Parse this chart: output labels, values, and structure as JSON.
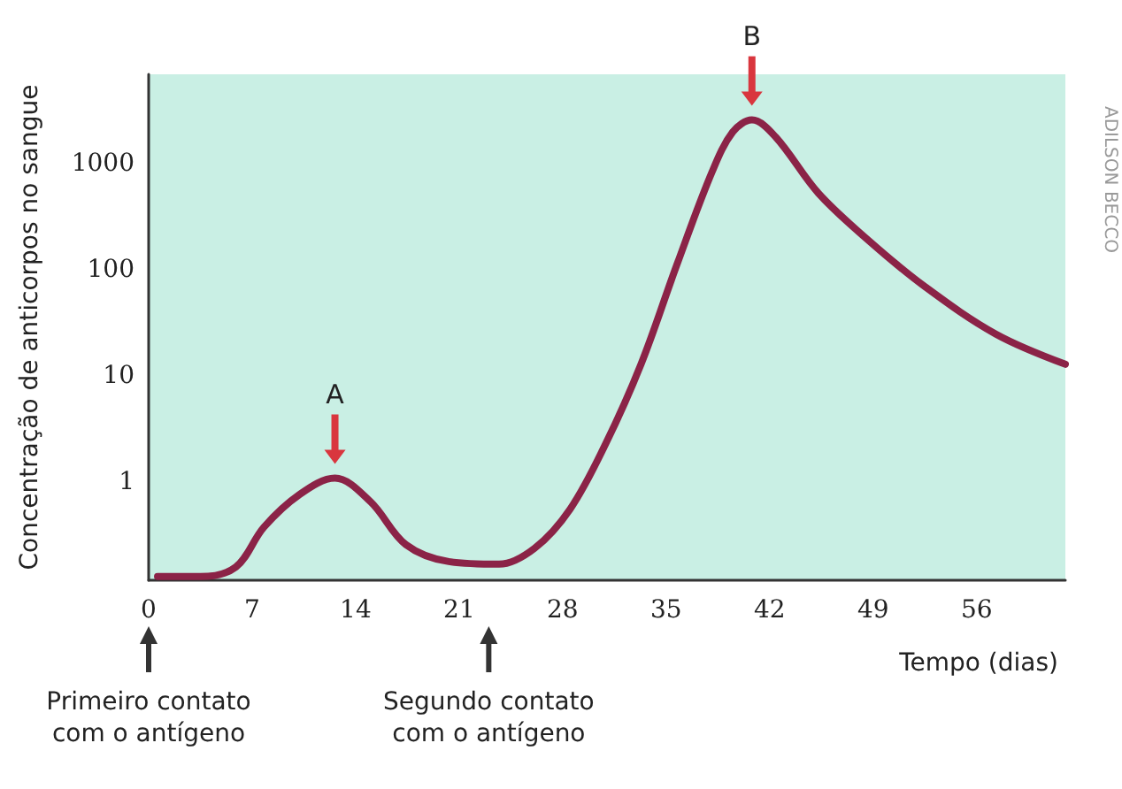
{
  "chart_data": {
    "type": "line",
    "xlabel": "Tempo (dias)",
    "ylabel": "Concentração de anticorpos no sangue",
    "x": [
      0.6,
      3.5,
      5.9,
      7.8,
      10.2,
      12.6,
      15.0,
      17.4,
      20.3,
      23.7,
      26.1,
      28.5,
      30.9,
      33.3,
      35.7,
      38.1,
      39.5,
      40.8,
      42.4,
      45.3,
      48.7,
      52.5,
      57.3,
      62
    ],
    "series": [
      {
        "color": "#8b2347",
        "values": [
          0.13,
          0.13,
          0.16,
          0.38,
          0.77,
          1.1,
          0.66,
          0.26,
          0.18,
          0.17,
          0.24,
          0.56,
          2.3,
          13,
          110,
          840,
          2000,
          2600,
          1800,
          530,
          190,
          70,
          25,
          13
        ]
      }
    ],
    "xlim": [
      0,
      62
    ],
    "xticks": [
      0,
      7,
      14,
      21,
      28,
      35,
      42,
      49,
      56
    ],
    "ylim": [
      0.12,
      7000
    ],
    "yticks": [
      1,
      10,
      100,
      1000
    ],
    "log": true,
    "grid": false,
    "marker": "none",
    "line_style": "solid",
    "annotations": [
      {
        "text": "A",
        "x": 12.6,
        "y": 1.1
      },
      {
        "text": "B",
        "x": 40.8,
        "y": 2600
      },
      "Primeiro contato\ncom o antígeno",
      "Segundo contato\ncom o antígeno",
      "ADILSON BECCO"
    ]
  }
}
